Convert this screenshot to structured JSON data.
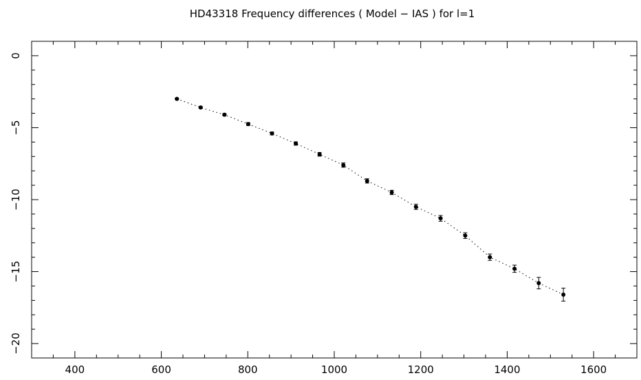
{
  "chart_data": {
    "type": "scatter",
    "title": "HD43318  Frequency differences ( Model − IAS )    for l=1",
    "xlabel": "",
    "ylabel": "",
    "xlim": [
      300,
      1700
    ],
    "ylim": [
      -21,
      1
    ],
    "x_ticks": [
      400,
      600,
      800,
      1000,
      1200,
      1400,
      1600
    ],
    "x_tick_labels": [
      "400",
      "600",
      "800",
      "1000",
      "1200",
      "1400",
      "1600"
    ],
    "y_ticks": [
      0,
      -5,
      -10,
      -15,
      -20
    ],
    "y_tick_labels": [
      "0",
      "−5",
      "−10",
      "−15",
      "−20"
    ],
    "grid": false,
    "connector": "dotted",
    "series": [
      {
        "x": [
          636,
          691,
          746,
          801,
          856,
          911,
          966,
          1021,
          1076,
          1133,
          1189,
          1246,
          1303,
          1360,
          1417,
          1473,
          1530
        ],
        "y": [
          -3.0,
          -3.6,
          -4.1,
          -4.75,
          -5.4,
          -6.1,
          -6.85,
          -7.6,
          -8.7,
          -9.5,
          -10.5,
          -11.3,
          -12.5,
          -14.0,
          -14.8,
          -15.8,
          -16.6
        ],
        "err": [
          0.05,
          0.07,
          0.08,
          0.1,
          0.1,
          0.12,
          0.13,
          0.15,
          0.15,
          0.15,
          0.18,
          0.2,
          0.2,
          0.22,
          0.25,
          0.4,
          0.45
        ]
      }
    ]
  }
}
